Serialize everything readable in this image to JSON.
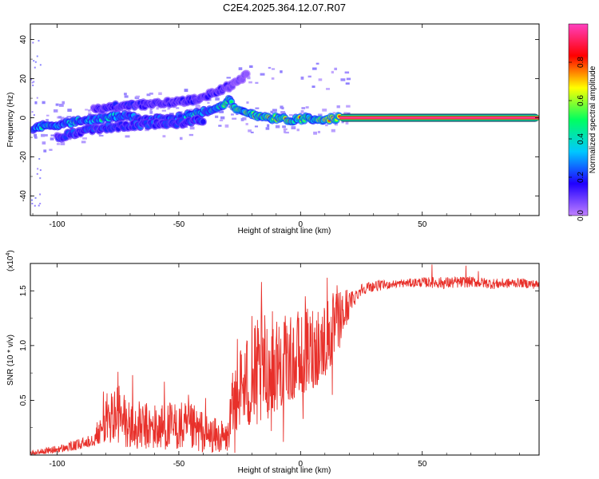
{
  "title": "C2E4.2025.364.12.07.R07",
  "chart_data": [
    {
      "type": "heatmap",
      "name": "spectrogram",
      "xlabel": "Height of straight line (km)",
      "ylabel": "Frequency (Hz)",
      "xlim": [
        -111,
        98
      ],
      "ylim": [
        -50,
        48
      ],
      "xticks": [
        -100,
        -50,
        0,
        50
      ],
      "xtick_labels": [
        "-100",
        "-50",
        "0",
        "50"
      ],
      "yticks": [
        -40,
        -20,
        0,
        20,
        40
      ],
      "ytick_labels": [
        "-40",
        "-20",
        "0",
        "20",
        "40"
      ],
      "colorbar": {
        "label": "Normalized spectral amplitude",
        "range": [
          0,
          1
        ],
        "ticks": [
          0.0,
          0.2,
          0.4,
          0.6,
          0.8
        ],
        "tick_labels": [
          "0.0",
          "0.2",
          "0.4",
          "0.6",
          "0.8"
        ],
        "colors": [
          "#c080ff",
          "#2000ff",
          "#00c8ff",
          "#00ff60",
          "#ffff00",
          "#ff0000",
          "#ff40c0"
        ]
      },
      "ridges": [
        {
          "name": "main-ridge",
          "points": [
            {
              "x": -110,
              "f": -5,
              "amp": 0.35
            },
            {
              "x": -104,
              "f": -4,
              "amp": 0.5
            },
            {
              "x": -98,
              "f": -3,
              "amp": 0.4
            },
            {
              "x": -92,
              "f": -2,
              "amp": 0.45
            },
            {
              "x": -86,
              "f": -1,
              "amp": 0.4
            },
            {
              "x": -80,
              "f": 0,
              "amp": 0.45
            },
            {
              "x": -74,
              "f": 1,
              "amp": 0.4
            },
            {
              "x": -68,
              "f": 0,
              "amp": 0.35
            },
            {
              "x": -62,
              "f": -1,
              "amp": 0.35
            },
            {
              "x": -56,
              "f": -1,
              "amp": 0.35
            },
            {
              "x": -50,
              "f": 0,
              "amp": 0.4
            },
            {
              "x": -44,
              "f": 2,
              "amp": 0.45
            },
            {
              "x": -38,
              "f": 4,
              "amp": 0.5
            },
            {
              "x": -33,
              "f": 6,
              "amp": 0.55
            },
            {
              "x": -29,
              "f": 9,
              "amp": 0.6
            },
            {
              "x": -27,
              "f": 4,
              "amp": 0.7
            },
            {
              "x": -20,
              "f": 2,
              "amp": 0.7
            },
            {
              "x": -12,
              "f": 0,
              "amp": 0.7
            },
            {
              "x": -4,
              "f": -1,
              "amp": 0.7
            },
            {
              "x": 4,
              "f": 0,
              "amp": 0.7
            },
            {
              "x": 10,
              "f": -1,
              "amp": 0.75
            },
            {
              "x": 16,
              "f": 0,
              "amp": 0.85
            }
          ]
        },
        {
          "name": "lower-ridge",
          "points": [
            {
              "x": -100,
              "f": -10,
              "amp": 0.25
            },
            {
              "x": -90,
              "f": -7,
              "amp": 0.3
            },
            {
              "x": -80,
              "f": -5,
              "amp": 0.3
            },
            {
              "x": -70,
              "f": -4,
              "amp": 0.3
            },
            {
              "x": -60,
              "f": -3,
              "amp": 0.3
            },
            {
              "x": -50,
              "f": -3,
              "amp": 0.3
            },
            {
              "x": -40,
              "f": -1,
              "amp": 0.3
            }
          ]
        },
        {
          "name": "upper-ridge",
          "points": [
            {
              "x": -85,
              "f": 4,
              "amp": 0.2
            },
            {
              "x": -75,
              "f": 6,
              "amp": 0.25
            },
            {
              "x": -60,
              "f": 7,
              "amp": 0.2
            },
            {
              "x": -45,
              "f": 9,
              "amp": 0.2
            },
            {
              "x": -35,
              "f": 13,
              "amp": 0.2
            },
            {
              "x": -28,
              "f": 17,
              "amp": 0.15
            },
            {
              "x": -22,
              "f": 22,
              "amp": 0.1
            }
          ]
        }
      ],
      "constant_line": {
        "x_start": 16,
        "x_end": 98,
        "f": 0,
        "amp": 1.0
      }
    },
    {
      "type": "line",
      "name": "snr",
      "xlabel": "Height of straight line (km)",
      "ylabel": "SNR (10 * v/v)",
      "multiplier_label": "(x10",
      "multiplier_exp": "4",
      "multiplier_close": ")",
      "xlim": [
        -111,
        98
      ],
      "ylim": [
        0.0,
        1.75
      ],
      "xticks": [
        -100,
        -50,
        0,
        50
      ],
      "xtick_labels": [
        "-100",
        "-50",
        "0",
        "50"
      ],
      "yticks": [
        0.5,
        1.0,
        1.5
      ],
      "ytick_labels": [
        "0.5",
        "1.0",
        "1.5"
      ],
      "color": "#e8302a",
      "envelope": {
        "x": [
          -111,
          -100,
          -90,
          -82,
          -80,
          -75,
          -70,
          -60,
          -50,
          -42,
          -36,
          -30,
          -27,
          -24,
          -20,
          -15,
          -10,
          -5,
          0,
          5,
          10,
          15,
          20,
          25,
          30,
          40,
          50,
          60,
          70,
          80,
          90,
          98
        ],
        "y_low": [
          0.0,
          0.02,
          0.05,
          0.1,
          0.12,
          0.08,
          0.05,
          0.05,
          0.05,
          0.03,
          0.02,
          0.03,
          0.2,
          0.3,
          0.2,
          0.3,
          0.4,
          0.5,
          0.5,
          0.6,
          0.7,
          0.9,
          1.25,
          1.45,
          1.48,
          1.52,
          1.52,
          1.5,
          1.52,
          1.5,
          1.52,
          1.5
        ],
        "y_high": [
          0.04,
          0.09,
          0.15,
          0.35,
          0.55,
          0.7,
          0.5,
          0.48,
          0.5,
          0.45,
          0.35,
          0.3,
          0.95,
          1.05,
          1.2,
          1.3,
          1.35,
          1.25,
          1.3,
          1.4,
          1.45,
          1.5,
          1.55,
          1.6,
          1.62,
          1.62,
          1.65,
          1.66,
          1.66,
          1.64,
          1.64,
          1.62
        ]
      },
      "peaks": [
        {
          "x": -81,
          "y": 0.58
        },
        {
          "x": -75,
          "y": 0.76
        },
        {
          "x": -69,
          "y": 0.73
        },
        {
          "x": -56,
          "y": 0.67
        },
        {
          "x": -46,
          "y": 0.55
        },
        {
          "x": -39,
          "y": 0.52
        },
        {
          "x": -26,
          "y": 1.06
        },
        {
          "x": -20,
          "y": 1.27
        },
        {
          "x": -16,
          "y": 1.58
        },
        {
          "x": -7,
          "y": 1.37
        },
        {
          "x": -1,
          "y": 1.31
        },
        {
          "x": 2,
          "y": 1.45
        },
        {
          "x": 11,
          "y": 1.62
        },
        {
          "x": 15,
          "y": 1.55
        },
        {
          "x": 54,
          "y": 1.74
        },
        {
          "x": 68,
          "y": 1.73
        },
        {
          "x": 73,
          "y": 1.68
        }
      ],
      "dips": [
        {
          "x": -27,
          "y": 0.02
        },
        {
          "x": -12,
          "y": 0.22
        },
        {
          "x": -7,
          "y": 0.12
        },
        {
          "x": 13,
          "y": 0.55
        },
        {
          "x": 1,
          "y": 0.33
        }
      ]
    }
  ]
}
